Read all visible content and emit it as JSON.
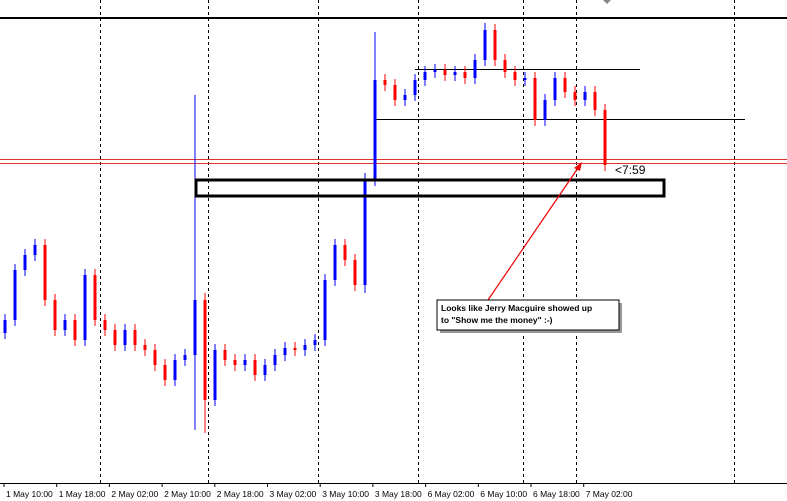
{
  "chart_data": {
    "type": "candlestick",
    "ylim": [
      0,
      483
    ],
    "up_color": "#0000ff",
    "down_color": "#ff0000",
    "open": [
      150,
      163,
      213,
      228,
      238,
      183,
      153,
      163,
      143,
      208,
      163,
      153,
      138,
      153,
      138,
      133,
      118,
      103,
      123,
      128,
      183,
      83,
      133,
      123,
      118,
      123,
      108,
      118,
      128,
      135,
      133,
      138,
      143,
      203,
      238,
      223,
      198,
      303,
      403,
      398,
      383,
      388,
      403,
      411,
      413,
      408,
      411,
      405,
      423,
      453,
      423,
      411,
      403,
      405,
      363,
      383,
      405,
      391,
      383,
      391,
      373
    ],
    "high": [
      169,
      219,
      234,
      244,
      244,
      189,
      169,
      169,
      214,
      214,
      169,
      159,
      159,
      159,
      144,
      139,
      124,
      129,
      134,
      388,
      190,
      139,
      139,
      129,
      129,
      129,
      124,
      134,
      141,
      141,
      144,
      149,
      209,
      244,
      244,
      229,
      310,
      451,
      409,
      404,
      394,
      409,
      417,
      419,
      419,
      417,
      417,
      429,
      460,
      459,
      429,
      417,
      411,
      411,
      389,
      411,
      411,
      397,
      397,
      397,
      379
    ],
    "low": [
      144,
      157,
      207,
      222,
      177,
      147,
      147,
      137,
      137,
      157,
      147,
      132,
      132,
      132,
      127,
      112,
      97,
      97,
      117,
      53,
      50,
      77,
      117,
      112,
      112,
      102,
      102,
      112,
      122,
      127,
      127,
      132,
      137,
      197,
      217,
      192,
      190,
      297,
      392,
      377,
      377,
      382,
      397,
      405,
      402,
      402,
      399,
      399,
      417,
      417,
      405,
      397,
      397,
      357,
      357,
      377,
      385,
      377,
      377,
      367,
      312
    ],
    "close": [
      163,
      213,
      228,
      238,
      183,
      153,
      163,
      143,
      208,
      163,
      153,
      138,
      153,
      138,
      133,
      118,
      103,
      123,
      128,
      183,
      83,
      133,
      123,
      118,
      123,
      108,
      118,
      128,
      135,
      133,
      138,
      143,
      203,
      238,
      223,
      198,
      303,
      403,
      398,
      383,
      388,
      403,
      411,
      413,
      408,
      411,
      405,
      423,
      453,
      423,
      411,
      403,
      405,
      363,
      383,
      405,
      391,
      383,
      391,
      373,
      318
    ],
    "x_labels": [
      "1 May 10:00",
      "1 May 18:00",
      "2 May 02:00",
      "2 May 10:00",
      "2 May 18:00",
      "3 May 02:00",
      "3 May 10:00",
      "3 May 18:00",
      "6 May 02:00",
      "6 May 10:00",
      "6 May 18:00",
      "7 May 02:00"
    ],
    "timer_label": "<7:59",
    "annotation": [
      "Looks like Jerry Macguire showed up",
      "to \"Show me the money\" :-)"
    ]
  }
}
